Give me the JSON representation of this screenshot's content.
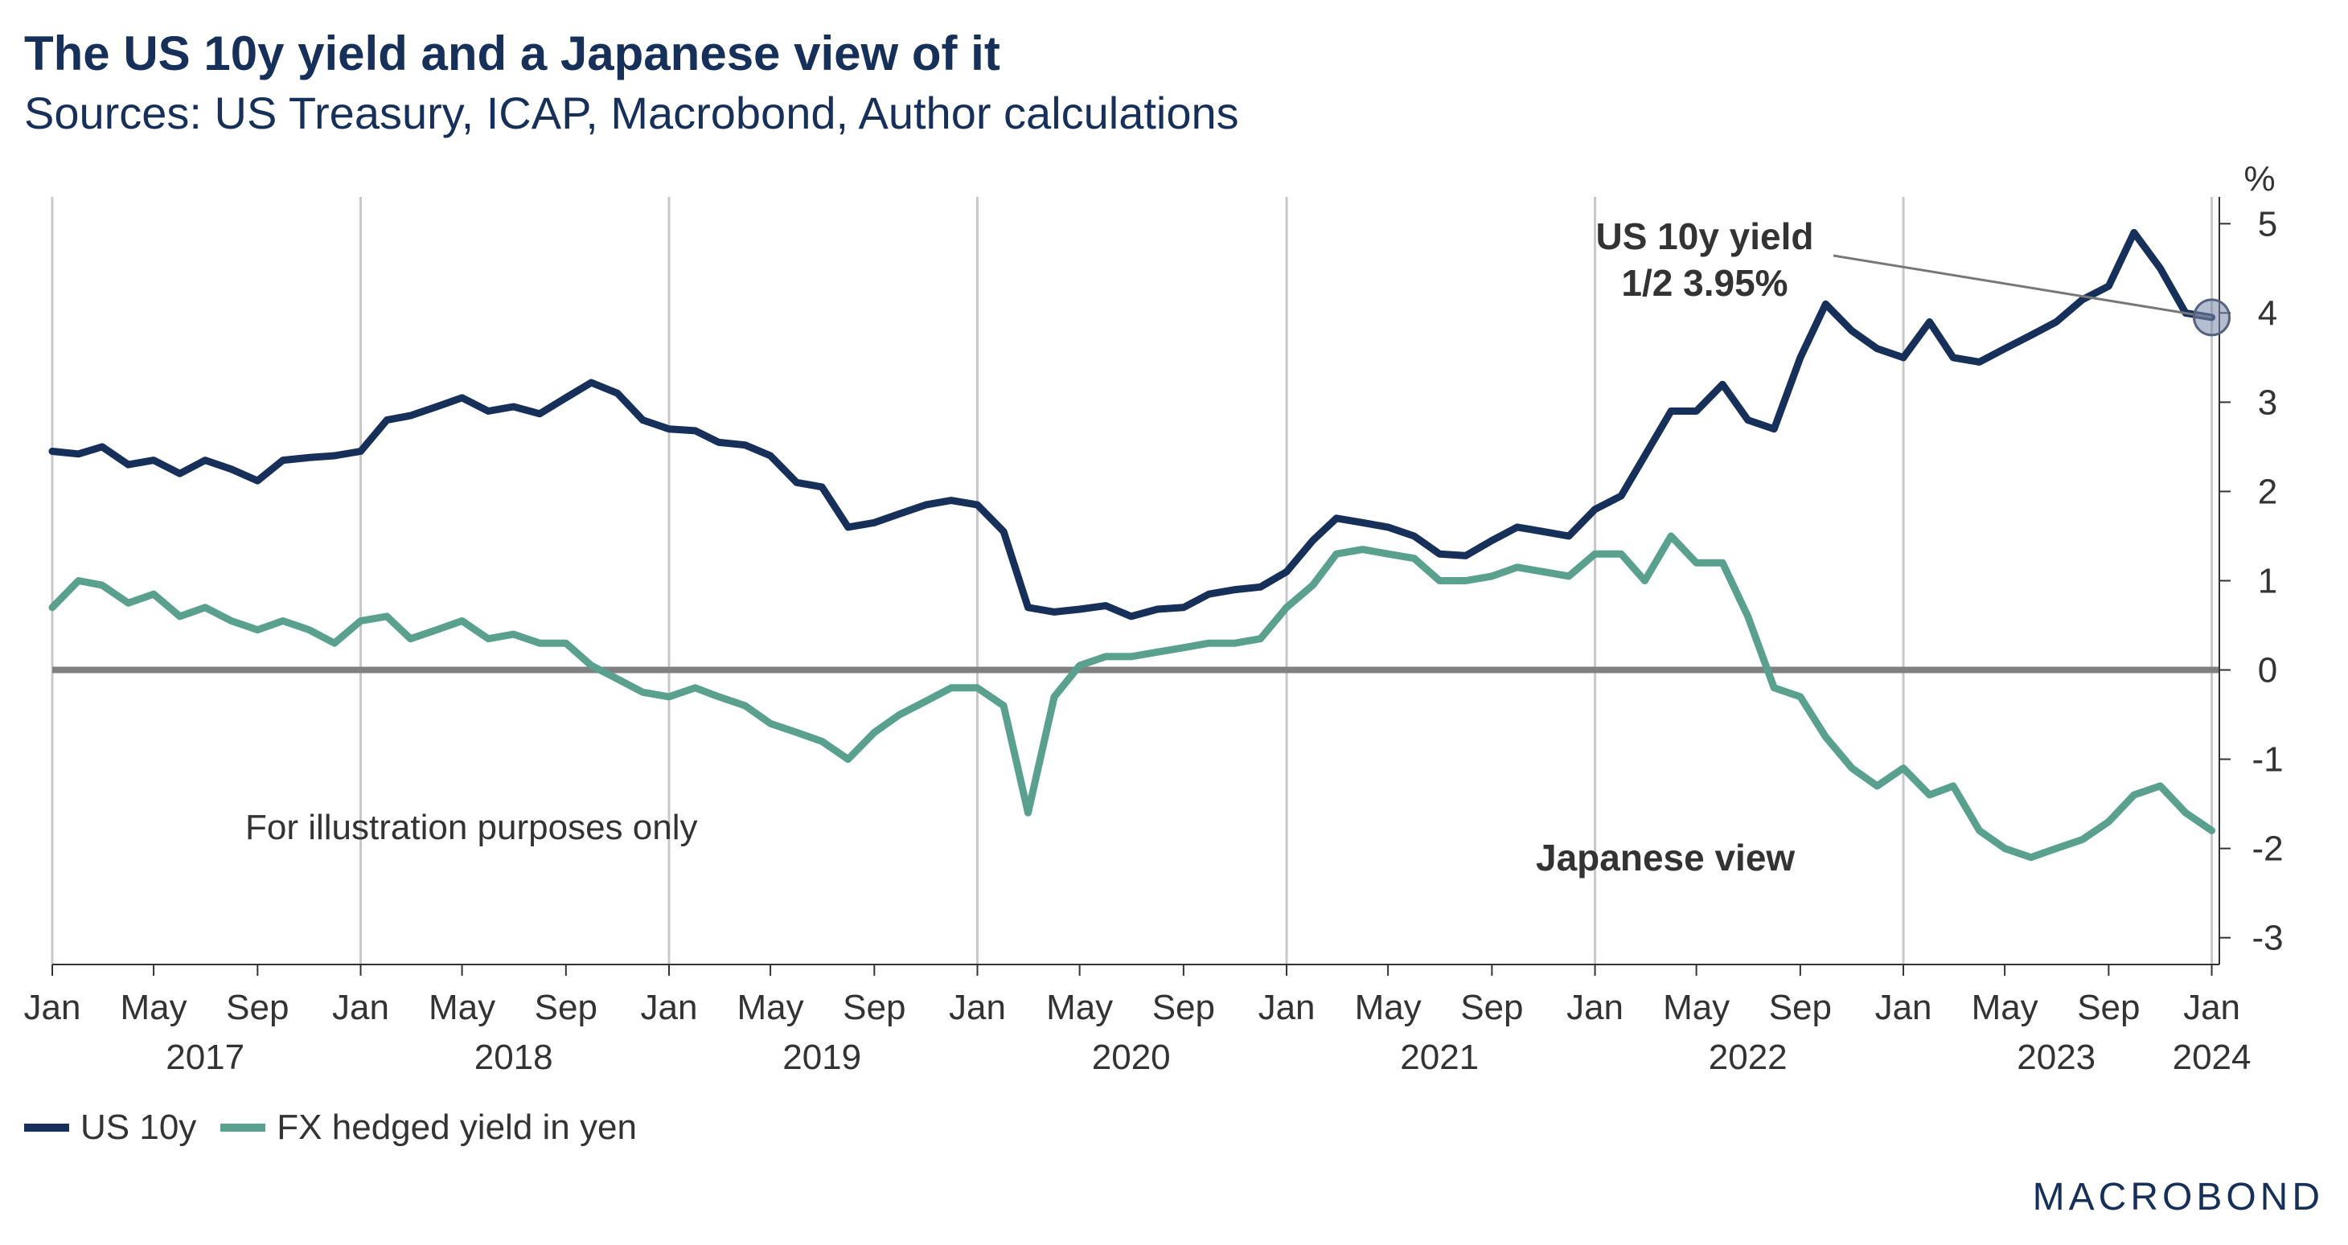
{
  "header": {
    "title": "The US 10y yield and a Japanese view of it",
    "subtitle": "Sources: US Treasury, ICAP, Macrobond, Author calculations"
  },
  "logo": {
    "text": "MACROBOND"
  },
  "colors": {
    "us10y": "#17305a",
    "hedged": "#5aa08e",
    "zero_line": "#808080",
    "grid": "#c8c8c8"
  },
  "chart_data": {
    "type": "line",
    "x_type": "date",
    "xlim": [
      "2017-01-01",
      "2024-01-10"
    ],
    "ylim": [
      -3.3,
      5.3
    ],
    "y_ticks": [
      5,
      4,
      3,
      2,
      1,
      0,
      -1,
      -2,
      -3
    ],
    "y_unit": "%",
    "grid": "vertical at January",
    "month_ticks": [
      {
        "date": "2017-01-01",
        "label": "Jan"
      },
      {
        "date": "2017-05-01",
        "label": "May"
      },
      {
        "date": "2017-09-01",
        "label": "Sep"
      },
      {
        "date": "2018-01-01",
        "label": "Jan"
      },
      {
        "date": "2018-05-01",
        "label": "May"
      },
      {
        "date": "2018-09-01",
        "label": "Sep"
      },
      {
        "date": "2019-01-01",
        "label": "Jan"
      },
      {
        "date": "2019-05-01",
        "label": "May"
      },
      {
        "date": "2019-09-01",
        "label": "Sep"
      },
      {
        "date": "2020-01-01",
        "label": "Jan"
      },
      {
        "date": "2020-05-01",
        "label": "May"
      },
      {
        "date": "2020-09-01",
        "label": "Sep"
      },
      {
        "date": "2021-01-01",
        "label": "Jan"
      },
      {
        "date": "2021-05-01",
        "label": "May"
      },
      {
        "date": "2021-09-01",
        "label": "Sep"
      },
      {
        "date": "2022-01-01",
        "label": "Jan"
      },
      {
        "date": "2022-05-01",
        "label": "May"
      },
      {
        "date": "2022-09-01",
        "label": "Sep"
      },
      {
        "date": "2023-01-01",
        "label": "Jan"
      },
      {
        "date": "2023-05-01",
        "label": "May"
      },
      {
        "date": "2023-09-01",
        "label": "Sep"
      },
      {
        "date": "2024-01-01",
        "label": "Jan"
      }
    ],
    "year_labels": [
      {
        "date": "2017-07-01",
        "label": "2017"
      },
      {
        "date": "2018-07-01",
        "label": "2018"
      },
      {
        "date": "2019-07-01",
        "label": "2019"
      },
      {
        "date": "2020-07-01",
        "label": "2020"
      },
      {
        "date": "2021-07-01",
        "label": "2021"
      },
      {
        "date": "2022-07-01",
        "label": "2022"
      },
      {
        "date": "2023-07-01",
        "label": "2023"
      },
      {
        "date": "2024-01-01",
        "label": "2024"
      }
    ],
    "series": [
      {
        "name": "US 10y",
        "points": [
          [
            "2017-01-01",
            2.45
          ],
          [
            "2017-02-01",
            2.42
          ],
          [
            "2017-03-01",
            2.5
          ],
          [
            "2017-04-01",
            2.3
          ],
          [
            "2017-05-01",
            2.35
          ],
          [
            "2017-06-01",
            2.2
          ],
          [
            "2017-07-01",
            2.35
          ],
          [
            "2017-08-01",
            2.25
          ],
          [
            "2017-09-01",
            2.12
          ],
          [
            "2017-10-01",
            2.35
          ],
          [
            "2017-11-01",
            2.38
          ],
          [
            "2017-12-01",
            2.4
          ],
          [
            "2018-01-01",
            2.45
          ],
          [
            "2018-02-01",
            2.8
          ],
          [
            "2018-03-01",
            2.85
          ],
          [
            "2018-04-01",
            2.95
          ],
          [
            "2018-05-01",
            3.05
          ],
          [
            "2018-06-01",
            2.9
          ],
          [
            "2018-07-01",
            2.95
          ],
          [
            "2018-08-01",
            2.87
          ],
          [
            "2018-09-01",
            3.05
          ],
          [
            "2018-10-01",
            3.22
          ],
          [
            "2018-11-01",
            3.1
          ],
          [
            "2018-12-01",
            2.8
          ],
          [
            "2019-01-01",
            2.7
          ],
          [
            "2019-02-01",
            2.68
          ],
          [
            "2019-03-01",
            2.55
          ],
          [
            "2019-04-01",
            2.52
          ],
          [
            "2019-05-01",
            2.4
          ],
          [
            "2019-06-01",
            2.1
          ],
          [
            "2019-07-01",
            2.05
          ],
          [
            "2019-08-01",
            1.6
          ],
          [
            "2019-09-01",
            1.65
          ],
          [
            "2019-10-01",
            1.75
          ],
          [
            "2019-11-01",
            1.85
          ],
          [
            "2019-12-01",
            1.9
          ],
          [
            "2020-01-01",
            1.85
          ],
          [
            "2020-02-01",
            1.55
          ],
          [
            "2020-03-01",
            0.7
          ],
          [
            "2020-04-01",
            0.65
          ],
          [
            "2020-05-01",
            0.68
          ],
          [
            "2020-06-01",
            0.72
          ],
          [
            "2020-07-01",
            0.6
          ],
          [
            "2020-08-01",
            0.68
          ],
          [
            "2020-09-01",
            0.7
          ],
          [
            "2020-10-01",
            0.85
          ],
          [
            "2020-11-01",
            0.9
          ],
          [
            "2020-12-01",
            0.93
          ],
          [
            "2021-01-01",
            1.1
          ],
          [
            "2021-02-01",
            1.45
          ],
          [
            "2021-03-01",
            1.7
          ],
          [
            "2021-04-01",
            1.65
          ],
          [
            "2021-05-01",
            1.6
          ],
          [
            "2021-06-01",
            1.5
          ],
          [
            "2021-07-01",
            1.3
          ],
          [
            "2021-08-01",
            1.28
          ],
          [
            "2021-09-01",
            1.45
          ],
          [
            "2021-10-01",
            1.6
          ],
          [
            "2021-11-01",
            1.55
          ],
          [
            "2021-12-01",
            1.5
          ],
          [
            "2022-01-01",
            1.8
          ],
          [
            "2022-02-01",
            1.95
          ],
          [
            "2022-03-01",
            2.4
          ],
          [
            "2022-04-01",
            2.9
          ],
          [
            "2022-05-01",
            2.9
          ],
          [
            "2022-06-01",
            3.2
          ],
          [
            "2022-07-01",
            2.8
          ],
          [
            "2022-08-01",
            2.7
          ],
          [
            "2022-09-01",
            3.5
          ],
          [
            "2022-10-01",
            4.1
          ],
          [
            "2022-11-01",
            3.8
          ],
          [
            "2022-12-01",
            3.6
          ],
          [
            "2023-01-01",
            3.5
          ],
          [
            "2023-02-01",
            3.9
          ],
          [
            "2023-03-01",
            3.5
          ],
          [
            "2023-04-01",
            3.45
          ],
          [
            "2023-05-01",
            3.6
          ],
          [
            "2023-06-01",
            3.75
          ],
          [
            "2023-07-01",
            3.9
          ],
          [
            "2023-08-01",
            4.15
          ],
          [
            "2023-09-01",
            4.3
          ],
          [
            "2023-10-01",
            4.9
          ],
          [
            "2023-11-01",
            4.5
          ],
          [
            "2023-12-01",
            4.0
          ],
          [
            "2024-01-01",
            3.95
          ]
        ]
      },
      {
        "name": "FX hedged yield in yen",
        "points": [
          [
            "2017-01-01",
            0.7
          ],
          [
            "2017-02-01",
            1.0
          ],
          [
            "2017-03-01",
            0.95
          ],
          [
            "2017-04-01",
            0.75
          ],
          [
            "2017-05-01",
            0.85
          ],
          [
            "2017-06-01",
            0.6
          ],
          [
            "2017-07-01",
            0.7
          ],
          [
            "2017-08-01",
            0.55
          ],
          [
            "2017-09-01",
            0.45
          ],
          [
            "2017-10-01",
            0.55
          ],
          [
            "2017-11-01",
            0.45
          ],
          [
            "2017-12-01",
            0.3
          ],
          [
            "2018-01-01",
            0.55
          ],
          [
            "2018-02-01",
            0.6
          ],
          [
            "2018-03-01",
            0.35
          ],
          [
            "2018-04-01",
            0.45
          ],
          [
            "2018-05-01",
            0.55
          ],
          [
            "2018-06-01",
            0.35
          ],
          [
            "2018-07-01",
            0.4
          ],
          [
            "2018-08-01",
            0.3
          ],
          [
            "2018-09-01",
            0.3
          ],
          [
            "2018-10-01",
            0.05
          ],
          [
            "2018-11-01",
            -0.1
          ],
          [
            "2018-12-01",
            -0.25
          ],
          [
            "2019-01-01",
            -0.3
          ],
          [
            "2019-02-01",
            -0.2
          ],
          [
            "2019-03-01",
            -0.3
          ],
          [
            "2019-04-01",
            -0.4
          ],
          [
            "2019-05-01",
            -0.6
          ],
          [
            "2019-06-01",
            -0.7
          ],
          [
            "2019-07-01",
            -0.8
          ],
          [
            "2019-08-01",
            -1.0
          ],
          [
            "2019-09-01",
            -0.7
          ],
          [
            "2019-10-01",
            -0.5
          ],
          [
            "2019-11-01",
            -0.35
          ],
          [
            "2019-12-01",
            -0.2
          ],
          [
            "2020-01-01",
            -0.2
          ],
          [
            "2020-02-01",
            -0.4
          ],
          [
            "2020-03-01",
            -1.6
          ],
          [
            "2020-04-01",
            -0.3
          ],
          [
            "2020-05-01",
            0.05
          ],
          [
            "2020-06-01",
            0.15
          ],
          [
            "2020-07-01",
            0.15
          ],
          [
            "2020-08-01",
            0.2
          ],
          [
            "2020-09-01",
            0.25
          ],
          [
            "2020-10-01",
            0.3
          ],
          [
            "2020-11-01",
            0.3
          ],
          [
            "2020-12-01",
            0.35
          ],
          [
            "2021-01-01",
            0.7
          ],
          [
            "2021-02-01",
            0.95
          ],
          [
            "2021-03-01",
            1.3
          ],
          [
            "2021-04-01",
            1.35
          ],
          [
            "2021-05-01",
            1.3
          ],
          [
            "2021-06-01",
            1.25
          ],
          [
            "2021-07-01",
            1.0
          ],
          [
            "2021-08-01",
            1.0
          ],
          [
            "2021-09-01",
            1.05
          ],
          [
            "2021-10-01",
            1.15
          ],
          [
            "2021-11-01",
            1.1
          ],
          [
            "2021-12-01",
            1.05
          ],
          [
            "2022-01-01",
            1.3
          ],
          [
            "2022-02-01",
            1.3
          ],
          [
            "2022-03-01",
            1.0
          ],
          [
            "2022-04-01",
            1.5
          ],
          [
            "2022-05-01",
            1.2
          ],
          [
            "2022-06-01",
            1.2
          ],
          [
            "2022-07-01",
            0.6
          ],
          [
            "2022-08-01",
            -0.2
          ],
          [
            "2022-09-01",
            -0.3
          ],
          [
            "2022-10-01",
            -0.75
          ],
          [
            "2022-11-01",
            -1.1
          ],
          [
            "2022-12-01",
            -1.3
          ],
          [
            "2023-01-01",
            -1.1
          ],
          [
            "2023-02-01",
            -1.4
          ],
          [
            "2023-03-01",
            -1.3
          ],
          [
            "2023-04-01",
            -1.8
          ],
          [
            "2023-05-01",
            -2.0
          ],
          [
            "2023-06-01",
            -2.1
          ],
          [
            "2023-07-01",
            -2.0
          ],
          [
            "2023-08-01",
            -1.9
          ],
          [
            "2023-09-01",
            -1.7
          ],
          [
            "2023-10-01",
            -1.4
          ],
          [
            "2023-11-01",
            -1.3
          ],
          [
            "2023-12-01",
            -1.6
          ],
          [
            "2024-01-01",
            -1.8
          ]
        ]
      }
    ],
    "annotations": {
      "us10y_label_1": "US 10y yield",
      "us10y_label_2": "1/2 3.95%",
      "japanese_view": "Japanese view",
      "illustration": "For illustration purposes only",
      "marker_value": 3.95,
      "marker_date": "2024-01-01"
    }
  }
}
